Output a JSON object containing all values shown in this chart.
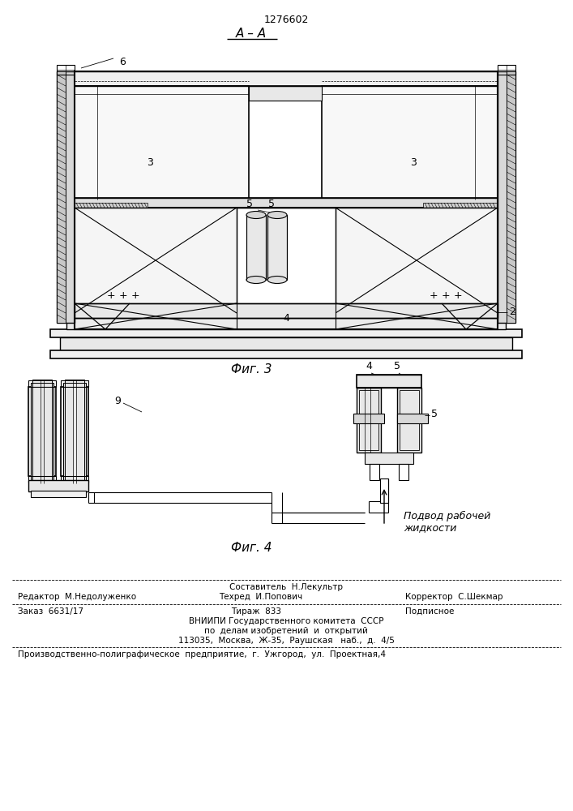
{
  "patent_number": "1276602",
  "section_label": "А – А",
  "fig3_label": "Фиг. 3",
  "fig4_label": "Фиг. 4",
  "label_6": "6",
  "label_3a": "3",
  "label_3b": "3",
  "label_2": "2",
  "label_5a": "5",
  "label_5b": "5",
  "label_4_fig3": "4",
  "label_9": "9",
  "label_4_fig4": "4",
  "label_5_fig4": "5",
  "label_5b_fig4": "5",
  "arrow_text_line1": "Подвод рабочей",
  "arrow_text_line2": "жидкости",
  "footer_line1": "Составитель  Н.Лекультр",
  "footer_line2_left": "Редактор  М.Недолуженко",
  "footer_line2_mid": "Техред  И.Попович",
  "footer_line2_right": "Корректор  С.Шекмар",
  "footer_line3_left": "Заказ  6631/17",
  "footer_line3_mid": "Тираж  833",
  "footer_line3_right": "Подписное",
  "footer_line4": "ВНИИПИ Государственного комитета  СССР",
  "footer_line5": "по  делам изобретений  и  открытий",
  "footer_line6": "113035,  Москва,  Ж-35,  Раушская   наб.,  д.  4/5",
  "footer_line7": "Производственно-полиграфическое  предприятие,  г.  Ужгород,  ул.  Проектная,4",
  "bg_color": "#ffffff",
  "lc": "#000000"
}
